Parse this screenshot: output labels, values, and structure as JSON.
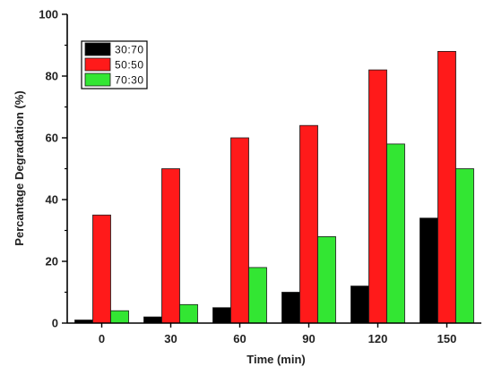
{
  "chart_data": {
    "type": "bar",
    "title": "",
    "xlabel": "Time (min)",
    "ylabel": "Percantage Degradation (%)",
    "categories": [
      "0",
      "30",
      "60",
      "90",
      "120",
      "150"
    ],
    "ylim": [
      0,
      100
    ],
    "yticks": [
      0,
      20,
      40,
      60,
      80,
      100
    ],
    "grid": false,
    "legend_position": "top-left",
    "series": [
      {
        "name": "30:70",
        "color": "#000000",
        "values": [
          1,
          2,
          5,
          10,
          12,
          34
        ]
      },
      {
        "name": "50:50",
        "color": "#ff1a1a",
        "values": [
          35,
          50,
          60,
          64,
          82,
          88
        ]
      },
      {
        "name": "70:30",
        "color": "#33e633",
        "values": [
          4,
          6,
          18,
          28,
          58,
          50
        ]
      }
    ]
  }
}
